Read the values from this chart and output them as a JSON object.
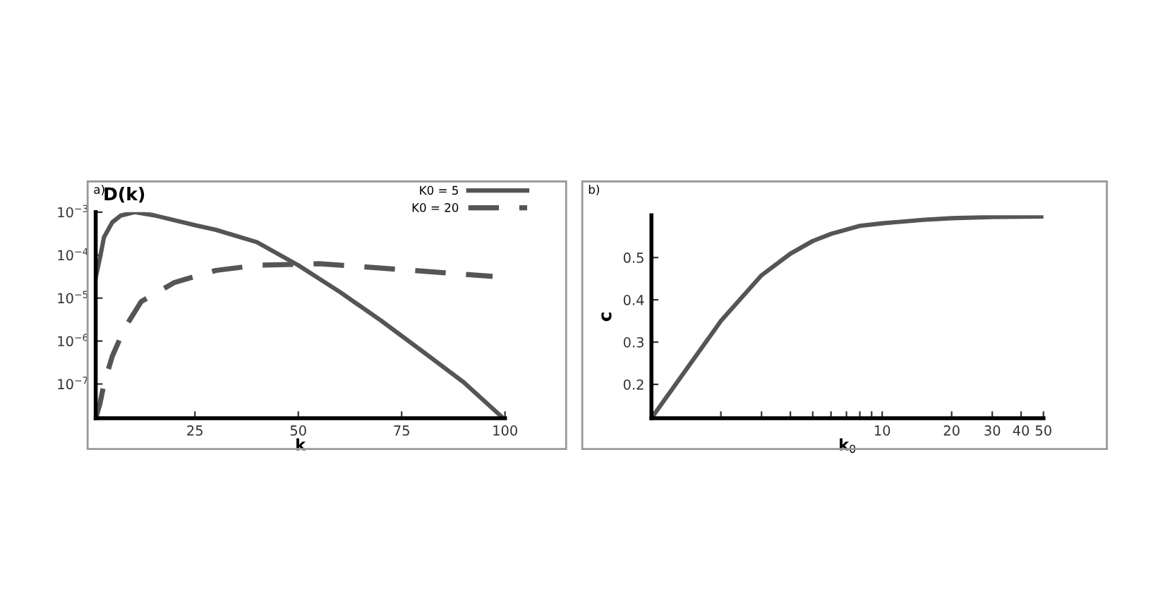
{
  "chart_data": [
    {
      "type": "line",
      "ylabel": "D(k)",
      "xlabel": "k",
      "annotations": [
        "a)"
      ],
      "log": "y",
      "legend": "top right",
      "xlim": [
        1,
        100
      ],
      "xticks": [
        25,
        50,
        75,
        100
      ],
      "ylim": [
        1.6e-08,
        0.001
      ],
      "yticks": [
        {
          "value": 0.001,
          "label": "10$^{−3}$"
        },
        {
          "value": 0.0001,
          "label": "10$^{−4}$"
        },
        {
          "value": 1e-05,
          "label": "10$^{−5}$"
        },
        {
          "value": 1e-06,
          "label": "10$^{−6}$"
        },
        {
          "value": 1e-07,
          "label": "10$^{−7}$"
        }
      ],
      "series": [
        {
          "name": "K0 = 5",
          "color": "#555555",
          "line_style": "solid",
          "x": [
            1,
            2,
            3,
            5,
            7,
            10.4,
            15,
            25,
            30,
            40,
            50,
            60,
            70,
            80,
            90,
            99
          ],
          "values": [
            3e-05,
            8.3e-05,
            0.00026,
            0.00058,
            0.00083,
            0.001,
            0.00085,
            0.0005,
            0.00039,
            0.0002,
            5.8e-05,
            1.4e-05,
            3e-06,
            5.8e-07,
            1.1e-07,
            1.8e-08
          ]
        },
        {
          "name": "K0 = 20",
          "color": "#555555",
          "line_style": "dashed",
          "x": [
            1,
            2,
            3,
            5,
            8,
            12,
            20,
            30,
            40,
            55,
            70,
            85,
            97
          ],
          "values": [
            1.6e-08,
            3.4e-08,
            1e-07,
            4.4e-07,
            2e-06,
            8.3e-06,
            2.3e-05,
            4.4e-05,
            5.8e-05,
            6.3e-05,
            5e-05,
            3.9e-05,
            3.2e-05
          ]
        }
      ]
    },
    {
      "type": "line",
      "ylabel": "c",
      "xlabel": "k$_{0}$",
      "annotations": [
        "b)"
      ],
      "log": "x",
      "xlim": [
        1,
        50
      ],
      "xticks": [
        {
          "value": 2,
          "label": null
        },
        {
          "value": 3,
          "label": null
        },
        {
          "value": 4,
          "label": null
        },
        {
          "value": 5,
          "label": null
        },
        {
          "value": 6,
          "label": null
        },
        {
          "value": 7,
          "label": null
        },
        {
          "value": 8,
          "label": null
        },
        {
          "value": 9,
          "label": null
        },
        10,
        20,
        30,
        40,
        50
      ],
      "ylim": [
        0.12,
        0.6
      ],
      "yticks": [
        0.2,
        0.3,
        0.4,
        0.5
      ],
      "series": [
        {
          "color": "#555555",
          "line_style": "solid",
          "x": [
            1,
            2,
            3,
            4,
            5,
            6,
            8,
            10,
            15,
            20,
            30,
            50
          ],
          "values": [
            0.12,
            0.35,
            0.458,
            0.509,
            0.539,
            0.556,
            0.575,
            0.581,
            0.589,
            0.593,
            0.596,
            0.597
          ]
        }
      ]
    }
  ]
}
